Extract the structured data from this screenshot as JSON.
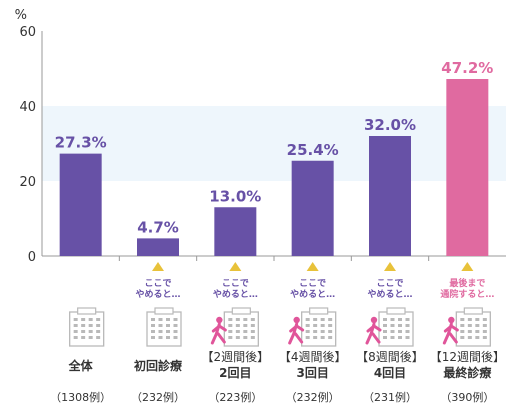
{
  "colors": {
    "bar": "#6751a6",
    "bar_highlight": "#e06aa0",
    "band": "#eef6fc",
    "note": "#6751a6",
    "note_highlight": "#e06aa0",
    "arrow": "#e8c23a",
    "building": "#b9b9b9",
    "person": "#e0559a"
  },
  "chart_data": {
    "type": "bar",
    "unit": "%",
    "ylim": [
      0,
      60
    ],
    "yticks": [
      0,
      20,
      40,
      60
    ],
    "shaded_band": [
      20,
      40
    ],
    "grid": false,
    "categories": [
      {
        "label": [
          "全体"
        ],
        "count": "（1308例）",
        "value": 27.3,
        "value_label": "27.3%",
        "note": [],
        "icon": "building-icon",
        "highlight": false
      },
      {
        "label": [
          "初回診療"
        ],
        "count": "（232例）",
        "value": 4.7,
        "value_label": "4.7%",
        "note": [
          "ここで",
          "やめると…"
        ],
        "icon": "building-icon",
        "highlight": false
      },
      {
        "label": [
          "【2週間後】",
          "2回目"
        ],
        "count": "（223例）",
        "value": 13.0,
        "value_label": "13.0%",
        "note": [
          "ここで",
          "やめると…"
        ],
        "icon": "walking-person-building-icon",
        "highlight": false
      },
      {
        "label": [
          "【4週間後】",
          "3回目"
        ],
        "count": "（232例）",
        "value": 25.4,
        "value_label": "25.4%",
        "note": [
          "ここで",
          "やめると…"
        ],
        "icon": "walking-person-building-icon",
        "highlight": false
      },
      {
        "label": [
          "【8週間後】",
          "4回目"
        ],
        "count": "（231例）",
        "value": 32.0,
        "value_label": "32.0%",
        "note": [
          "ここで",
          "やめると…"
        ],
        "icon": "walking-person-building-icon",
        "highlight": false
      },
      {
        "label": [
          "【12週間後】",
          "最終診療"
        ],
        "count": "（390例）",
        "value": 47.2,
        "value_label": "47.2%",
        "note": [
          "最後まで",
          "通院すると…"
        ],
        "icon": "walking-person-building-icon",
        "highlight": true
      }
    ]
  }
}
